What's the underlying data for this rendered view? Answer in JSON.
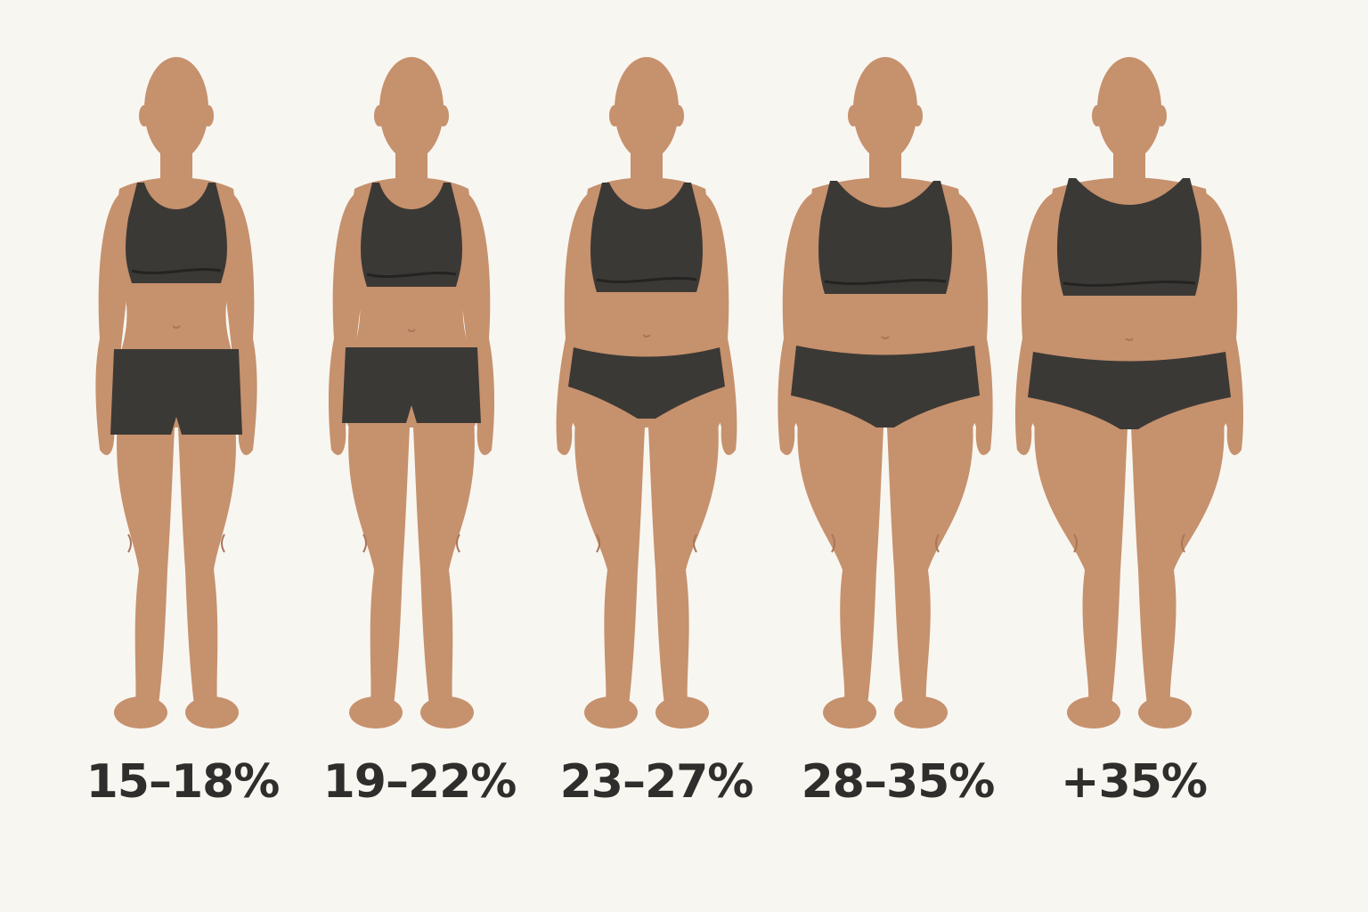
{
  "colors": {
    "background": "#f8f6f1",
    "skin": "#c6916d",
    "skin_shade": "#a9765a",
    "garment": "#3b3936",
    "garment_line": "#252321",
    "label_text": "#2f2e2c"
  },
  "figures": [
    {
      "label": "15–18%"
    },
    {
      "label": "19–22%"
    },
    {
      "label": "23–27%"
    },
    {
      "label": "28–35%"
    },
    {
      "label": "+35%"
    }
  ]
}
